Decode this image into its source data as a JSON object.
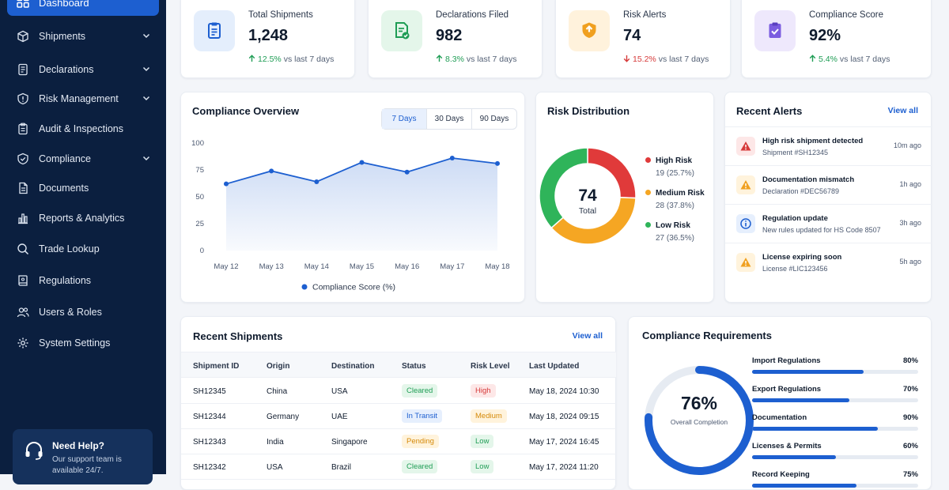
{
  "sidebar": {
    "active_label": "Dashboard",
    "items": [
      {
        "label": "Shipments",
        "icon": "box-icon",
        "expandable": true
      },
      {
        "label": "Declarations",
        "icon": "document-icon",
        "expandable": true
      },
      {
        "label": "Risk Management",
        "icon": "shield-alert-icon",
        "expandable": true
      },
      {
        "label": "Audit & Inspections",
        "icon": "clipboard-icon",
        "expandable": false
      },
      {
        "label": "Compliance",
        "icon": "shield-check-icon",
        "expandable": true
      },
      {
        "label": "Documents",
        "icon": "file-icon",
        "expandable": false
      },
      {
        "label": "Reports & Analytics",
        "icon": "bar-chart-icon",
        "expandable": false
      },
      {
        "label": "Trade Lookup",
        "icon": "search-icon",
        "expandable": false
      },
      {
        "label": "Regulations",
        "icon": "book-icon",
        "expandable": false
      },
      {
        "label": "Users & Roles",
        "icon": "users-icon",
        "expandable": false
      },
      {
        "label": "System Settings",
        "icon": "gear-icon",
        "expandable": false
      }
    ],
    "help": {
      "title": "Need Help?",
      "text": "Our support team is available 24/7."
    }
  },
  "stats": [
    {
      "label": "Total Shipments",
      "value": "1,248",
      "delta": "12.5%",
      "direction": "up",
      "suffix": "vs last 7 days",
      "icon": "clipboard-list-icon",
      "color": "#1d5fd0"
    },
    {
      "label": "Declarations Filed",
      "value": "982",
      "delta": "8.3%",
      "direction": "up",
      "suffix": "vs last 7 days",
      "icon": "document-check-icon",
      "color": "#1f9d55"
    },
    {
      "label": "Risk Alerts",
      "value": "74",
      "delta": "15.2%",
      "direction": "down",
      "suffix": "vs last 7 days",
      "icon": "shield-warning-icon",
      "color": "#f0a020"
    },
    {
      "label": "Compliance Score",
      "value": "92%",
      "delta": "5.4%",
      "direction": "up",
      "suffix": "vs last 7 days",
      "icon": "clipboard-check-icon",
      "color": "#7b5ce0"
    }
  ],
  "compliance_overview": {
    "title": "Compliance Overview",
    "ranges": [
      "7 Days",
      "30 Days",
      "90 Days"
    ],
    "selected_range": "7 Days"
  },
  "chart_data": {
    "type": "area",
    "categories": [
      "May 12",
      "May 13",
      "May 14",
      "May 15",
      "May 16",
      "May 17",
      "May 18"
    ],
    "series": [
      {
        "name": "Compliance Score (%)",
        "values": [
          62,
          74,
          64,
          82,
          73,
          86,
          81
        ]
      }
    ],
    "ylim": [
      0,
      100
    ],
    "yticks": [
      0,
      25,
      50,
      75,
      100
    ],
    "legend": "bottom",
    "grid": false,
    "color": "#1d5fd0"
  },
  "risk_distribution": {
    "title": "Risk Distribution",
    "total": "74",
    "total_label": "Total",
    "segments": [
      {
        "name": "High Risk",
        "value": 19,
        "label": "19 (25.7%)",
        "color": "#e03a3a"
      },
      {
        "name": "Medium Risk",
        "value": 28,
        "label": "28 (37.8%)",
        "color": "#f5a623"
      },
      {
        "name": "Low Risk",
        "value": 27,
        "label": "27 (36.5%)",
        "color": "#2fb45a"
      }
    ]
  },
  "recent_alerts": {
    "title": "Recent Alerts",
    "view_all": "View all",
    "items": [
      {
        "title": "High risk shipment detected",
        "subtitle": "Shipment #SH12345",
        "time": "10m ago",
        "kind": "danger"
      },
      {
        "title": "Documentation mismatch",
        "subtitle": "Declaration #DEC56789",
        "time": "1h ago",
        "kind": "warning"
      },
      {
        "title": "Regulation update",
        "subtitle": "New rules updated for HS Code 8507",
        "time": "3h ago",
        "kind": "info"
      },
      {
        "title": "License expiring soon",
        "subtitle": "License #LIC123456",
        "time": "5h ago",
        "kind": "warning"
      }
    ]
  },
  "recent_shipments": {
    "title": "Recent Shipments",
    "view_all": "View all",
    "columns": [
      "Shipment ID",
      "Origin",
      "Destination",
      "Status",
      "Risk Level",
      "Last Updated"
    ],
    "rows": [
      {
        "id": "SH12345",
        "origin": "China",
        "destination": "USA",
        "status": "Cleared",
        "risk": "High",
        "updated": "May 18, 2024 10:30"
      },
      {
        "id": "SH12344",
        "origin": "Germany",
        "destination": "UAE",
        "status": "In Transit",
        "risk": "Medium",
        "updated": "May 18, 2024 09:15"
      },
      {
        "id": "SH12343",
        "origin": "India",
        "destination": "Singapore",
        "status": "Pending",
        "risk": "Low",
        "updated": "May 17, 2024 16:45"
      },
      {
        "id": "SH12342",
        "origin": "USA",
        "destination": "Brazil",
        "status": "Cleared",
        "risk": "Low",
        "updated": "May 17, 2024 11:20"
      }
    ]
  },
  "compliance_requirements": {
    "title": "Compliance Requirements",
    "overall": "76%",
    "overall_value": 76,
    "overall_label": "Overall Completion",
    "items": [
      {
        "name": "Import Regulations",
        "percent": "80%",
        "value": 80
      },
      {
        "name": "Export Regulations",
        "percent": "70%",
        "value": 70
      },
      {
        "name": "Documentation",
        "percent": "90%",
        "value": 90
      },
      {
        "name": "Licenses & Permits",
        "percent": "60%",
        "value": 60
      },
      {
        "name": "Record Keeping",
        "percent": "75%",
        "value": 75
      }
    ]
  }
}
